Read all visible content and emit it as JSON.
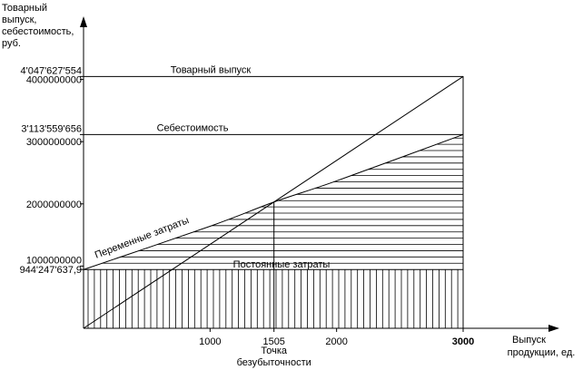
{
  "chart_data": {
    "type": "line",
    "y_axis_title_lines": [
      "Товарный",
      "выпуск,",
      "себестоимость,",
      "руб."
    ],
    "x_axis_title_lines": [
      "Выпуск",
      "продукции, ед."
    ],
    "xlim": [
      0,
      3000
    ],
    "ylim": [
      0,
      4500000000
    ],
    "x_ticks": [
      {
        "value": 1000,
        "label": "1000",
        "bold": false
      },
      {
        "value": 1505,
        "label": "1505",
        "bold": false
      },
      {
        "value": 2000,
        "label": "2000",
        "bold": false
      },
      {
        "value": 3000,
        "label": "3000",
        "bold": true
      }
    ],
    "y_ticks": [
      {
        "value": 944247637.9,
        "label": "944'247'637,9",
        "side": "below"
      },
      {
        "value": 1000000000,
        "label": "1000000000",
        "side": "above"
      },
      {
        "value": 2000000000,
        "label": "2000000000",
        "side": "mid"
      },
      {
        "value": 3000000000,
        "label": "3000000000",
        "side": "below"
      },
      {
        "value": 3113559656,
        "label": "3'113'559'656",
        "side": "above"
      },
      {
        "value": 4000000000,
        "label": "4000000000",
        "side": "below"
      },
      {
        "value": 4047627554,
        "label": "4'047'627'554",
        "side": "above"
      }
    ],
    "series": [
      {
        "name": "Товарный выпуск",
        "x": [
          0,
          3000
        ],
        "y": [
          0,
          4047627554
        ]
      },
      {
        "name": "Себестоимость",
        "x": [
          0,
          1000,
          1505,
          2000,
          3000
        ],
        "y": [
          944247637.9,
          1640000000,
          2030000000,
          2370000000,
          3113559656
        ]
      },
      {
        "name": "Постоянные затраты",
        "x": [
          0,
          3000
        ],
        "y": [
          944247637.9,
          944247637.9
        ]
      }
    ],
    "reference_lines": [
      {
        "label": "Товарный выпуск",
        "y": 4047627554
      },
      {
        "label": "Себестоимость",
        "y": 3113559656
      }
    ],
    "area_labels": {
      "fixed_costs": "Постоянные затраты",
      "variable_costs": "Переменные затраты"
    },
    "break_even": {
      "x": 1505,
      "y": 2030000000,
      "label_lines": [
        "Точка",
        "безубыточности"
      ]
    }
  }
}
